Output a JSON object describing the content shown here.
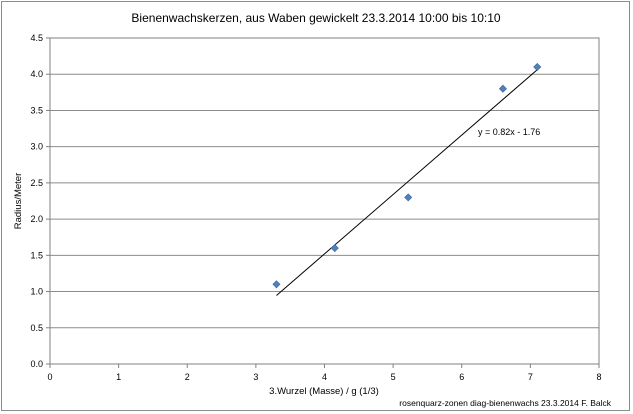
{
  "chart_data": {
    "type": "scatter",
    "title": "Bienenwachskerzen, aus Waben gewickelt 23.3.2014  10:00 bis 10:10",
    "xlabel": "3.Wurzel (Masse) / g (1/3)",
    "ylabel": "Radius/Meter",
    "xlim": [
      0,
      8
    ],
    "ylim": [
      0,
      4.5
    ],
    "x_ticks": [
      "0",
      "1",
      "2",
      "3",
      "4",
      "5",
      "6",
      "7",
      "8"
    ],
    "y_ticks": [
      "0.0",
      "0.5",
      "1.0",
      "1.5",
      "2.0",
      "2.5",
      "3.0",
      "3.5",
      "4.0",
      "4.5"
    ],
    "grid": "horizontal",
    "legend": "none",
    "series": [
      {
        "color": "#4f81bd",
        "marker": "diamond",
        "x": [
          3.3,
          4.15,
          5.22,
          6.6,
          7.1
        ],
        "y": [
          1.1,
          1.6,
          2.3,
          3.8,
          4.1
        ]
      }
    ],
    "trendline": {
      "slope": 0.82,
      "intercept": -1.76,
      "x_range": [
        3.3,
        7.1
      ],
      "label": "y = 0.82x - 1.76",
      "color": "#000000"
    },
    "footer_note": "rosenquarz-zonen  diag-bienenwachs 23.3.2014 F. Balck"
  }
}
